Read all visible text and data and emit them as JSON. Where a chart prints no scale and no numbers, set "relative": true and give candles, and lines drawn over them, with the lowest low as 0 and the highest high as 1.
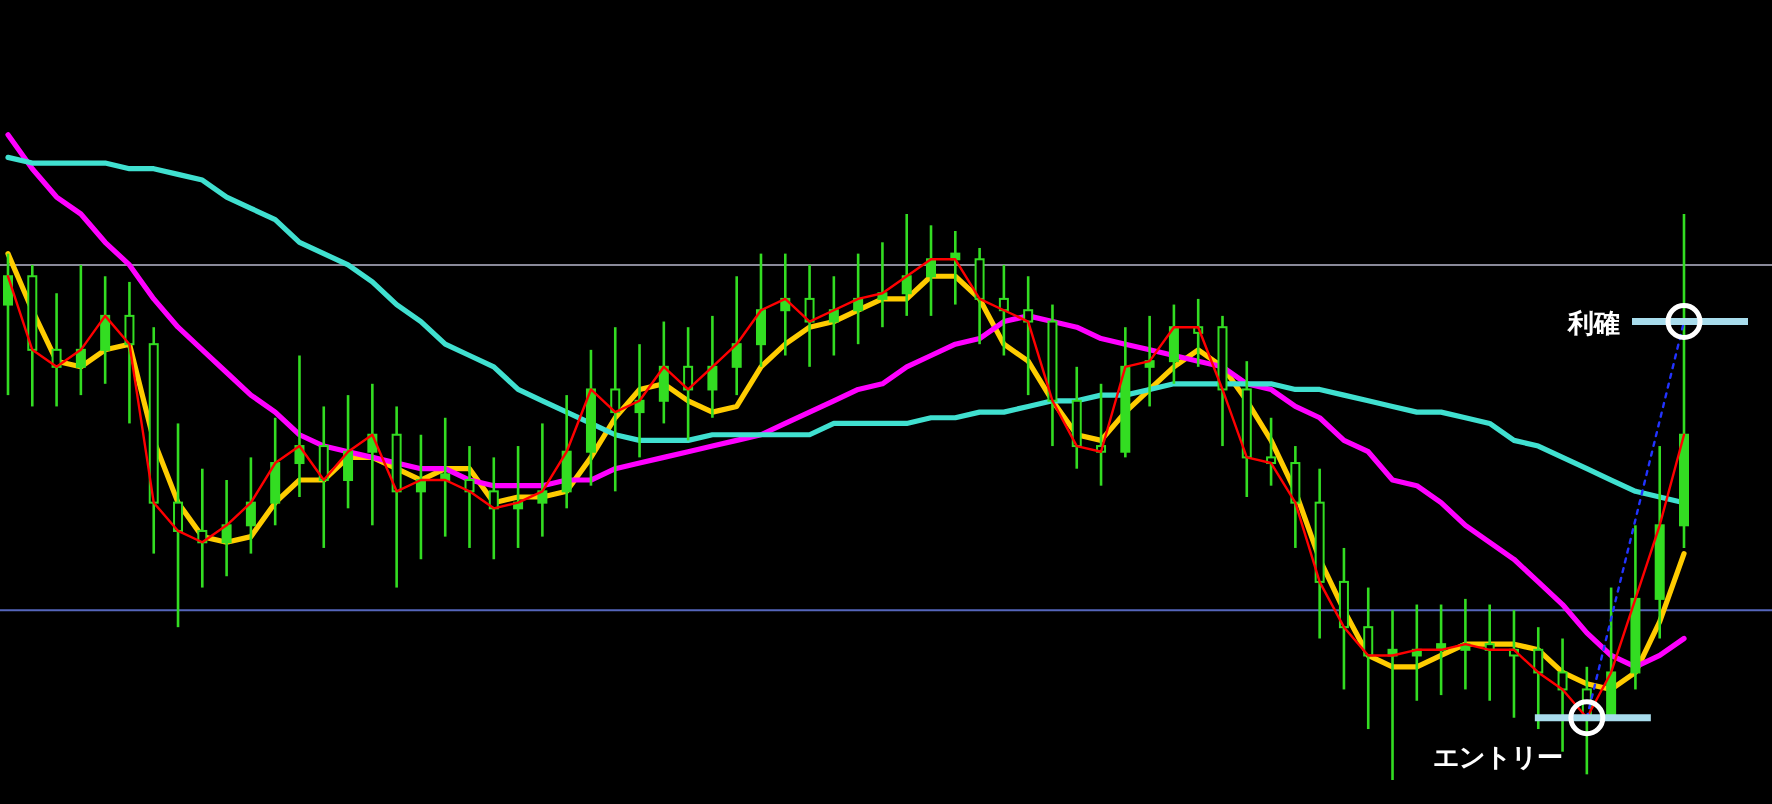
{
  "chart_data": {
    "type": "candlestick",
    "relative": true,
    "color": "#33dd22",
    "categories": [
      null,
      null,
      null,
      null,
      null,
      null,
      null,
      null,
      null,
      null,
      null,
      null,
      null,
      null,
      null,
      null,
      null,
      null,
      null,
      null,
      null,
      null,
      null,
      null,
      null,
      null,
      null,
      null,
      null,
      null,
      null,
      null,
      null,
      null,
      null,
      null,
      null,
      null,
      null,
      null,
      null,
      null,
      null,
      null,
      null,
      null,
      null,
      null,
      null,
      null,
      null,
      null,
      null,
      null,
      null,
      null,
      null,
      null,
      null,
      null,
      null,
      null,
      null,
      null,
      null,
      null,
      null,
      null,
      null,
      null
    ],
    "ohlc": [
      [
        0.84,
        0.93,
        0.68,
        0.89
      ],
      [
        0.89,
        0.91,
        0.66,
        0.76
      ],
      [
        0.76,
        0.86,
        0.66,
        0.73
      ],
      [
        0.73,
        0.91,
        0.68,
        0.76
      ],
      [
        0.76,
        0.89,
        0.7,
        0.82
      ],
      [
        0.82,
        0.88,
        0.63,
        0.77
      ],
      [
        0.77,
        0.8,
        0.4,
        0.49
      ],
      [
        0.49,
        0.63,
        0.27,
        0.44
      ],
      [
        0.44,
        0.55,
        0.34,
        0.42
      ],
      [
        0.42,
        0.53,
        0.36,
        0.45
      ],
      [
        0.45,
        0.57,
        0.4,
        0.49
      ],
      [
        0.49,
        0.64,
        0.45,
        0.56
      ],
      [
        0.56,
        0.75,
        0.5,
        0.59
      ],
      [
        0.59,
        0.66,
        0.41,
        0.53
      ],
      [
        0.53,
        0.68,
        0.48,
        0.58
      ],
      [
        0.58,
        0.7,
        0.45,
        0.61
      ],
      [
        0.61,
        0.66,
        0.34,
        0.51
      ],
      [
        0.51,
        0.61,
        0.39,
        0.53
      ],
      [
        0.53,
        0.64,
        0.43,
        0.54
      ],
      [
        0.53,
        0.59,
        0.41,
        0.51
      ],
      [
        0.51,
        0.57,
        0.39,
        0.48
      ],
      [
        0.48,
        0.59,
        0.41,
        0.49
      ],
      [
        0.49,
        0.63,
        0.43,
        0.51
      ],
      [
        0.51,
        0.68,
        0.48,
        0.58
      ],
      [
        0.58,
        0.76,
        0.52,
        0.69
      ],
      [
        0.69,
        0.8,
        0.51,
        0.65
      ],
      [
        0.65,
        0.77,
        0.57,
        0.67
      ],
      [
        0.67,
        0.81,
        0.63,
        0.73
      ],
      [
        0.73,
        0.8,
        0.6,
        0.69
      ],
      [
        0.69,
        0.82,
        0.64,
        0.73
      ],
      [
        0.73,
        0.89,
        0.68,
        0.77
      ],
      [
        0.77,
        0.93,
        0.73,
        0.83
      ],
      [
        0.83,
        0.93,
        0.75,
        0.85
      ],
      [
        0.85,
        0.91,
        0.73,
        0.81
      ],
      [
        0.81,
        0.89,
        0.75,
        0.83
      ],
      [
        0.83,
        0.93,
        0.77,
        0.85
      ],
      [
        0.85,
        0.95,
        0.8,
        0.86
      ],
      [
        0.86,
        1.0,
        0.82,
        0.89
      ],
      [
        0.89,
        0.98,
        0.82,
        0.92
      ],
      [
        0.92,
        0.97,
        0.84,
        0.93
      ],
      [
        0.92,
        0.94,
        0.77,
        0.85
      ],
      [
        0.85,
        0.91,
        0.75,
        0.83
      ],
      [
        0.83,
        0.89,
        0.68,
        0.81
      ],
      [
        0.81,
        0.84,
        0.59,
        0.67
      ],
      [
        0.67,
        0.73,
        0.55,
        0.59
      ],
      [
        0.59,
        0.7,
        0.52,
        0.58
      ],
      [
        0.58,
        0.8,
        0.57,
        0.73
      ],
      [
        0.73,
        0.82,
        0.66,
        0.74
      ],
      [
        0.74,
        0.84,
        0.7,
        0.8
      ],
      [
        0.8,
        0.85,
        0.73,
        0.79
      ],
      [
        0.8,
        0.82,
        0.59,
        0.69
      ],
      [
        0.69,
        0.74,
        0.5,
        0.57
      ],
      [
        0.57,
        0.64,
        0.52,
        0.56
      ],
      [
        0.56,
        0.59,
        0.41,
        0.49
      ],
      [
        0.49,
        0.55,
        0.25,
        0.35
      ],
      [
        0.35,
        0.41,
        0.16,
        0.27
      ],
      [
        0.27,
        0.34,
        0.09,
        0.22
      ],
      [
        0.22,
        0.3,
        0.0,
        0.23
      ],
      [
        0.22,
        0.31,
        0.14,
        0.23
      ],
      [
        0.23,
        0.31,
        0.15,
        0.24
      ],
      [
        0.23,
        0.32,
        0.16,
        0.24
      ],
      [
        0.24,
        0.31,
        0.14,
        0.23
      ],
      [
        0.23,
        0.3,
        0.11,
        0.22
      ],
      [
        0.23,
        0.27,
        0.09,
        0.19
      ],
      [
        0.19,
        0.25,
        0.05,
        0.16
      ],
      [
        0.16,
        0.2,
        0.01,
        0.11
      ],
      [
        0.11,
        0.34,
        0.11,
        0.19
      ],
      [
        0.19,
        0.45,
        0.16,
        0.32
      ],
      [
        0.32,
        0.59,
        0.25,
        0.45
      ],
      [
        0.45,
        1.0,
        0.41,
        0.61
      ]
    ],
    "series": [
      {
        "type": "line",
        "color": "#ff0000",
        "values": [
          0.89,
          0.76,
          0.73,
          0.76,
          0.82,
          0.77,
          0.49,
          0.44,
          0.42,
          0.45,
          0.49,
          0.56,
          0.59,
          0.53,
          0.58,
          0.61,
          0.51,
          0.53,
          0.53,
          0.51,
          0.48,
          0.49,
          0.51,
          0.58,
          0.69,
          0.65,
          0.67,
          0.73,
          0.69,
          0.73,
          0.77,
          0.83,
          0.85,
          0.81,
          0.83,
          0.85,
          0.86,
          0.89,
          0.92,
          0.92,
          0.85,
          0.83,
          0.81,
          0.67,
          0.59,
          0.58,
          0.73,
          0.74,
          0.8,
          0.8,
          0.69,
          0.57,
          0.56,
          0.49,
          0.35,
          0.27,
          0.22,
          0.22,
          0.23,
          0.23,
          0.24,
          0.23,
          0.23,
          0.19,
          0.16,
          0.11,
          0.19,
          0.32,
          0.45,
          0.61
        ]
      },
      {
        "type": "line",
        "color": "#ffcc00",
        "values": [
          0.93,
          0.83,
          0.74,
          0.73,
          0.76,
          0.77,
          0.6,
          0.49,
          0.43,
          0.42,
          0.43,
          0.49,
          0.53,
          0.53,
          0.57,
          0.57,
          0.55,
          0.53,
          0.55,
          0.55,
          0.49,
          0.5,
          0.5,
          0.51,
          0.57,
          0.64,
          0.69,
          0.7,
          0.67,
          0.65,
          0.66,
          0.73,
          0.77,
          0.8,
          0.81,
          0.83,
          0.85,
          0.85,
          0.89,
          0.89,
          0.85,
          0.77,
          0.74,
          0.67,
          0.61,
          0.6,
          0.65,
          0.69,
          0.73,
          0.76,
          0.73,
          0.67,
          0.6,
          0.51,
          0.39,
          0.3,
          0.22,
          0.2,
          0.2,
          0.22,
          0.24,
          0.24,
          0.24,
          0.23,
          0.19,
          0.17,
          0.16,
          0.19,
          0.28,
          0.4
        ]
      },
      {
        "type": "line",
        "color": "#ff00ff",
        "values": [
          1.14,
          1.08,
          1.03,
          1.0,
          0.95,
          0.91,
          0.85,
          0.8,
          0.76,
          0.72,
          0.68,
          0.65,
          0.61,
          0.59,
          0.58,
          0.57,
          0.56,
          0.55,
          0.55,
          0.53,
          0.52,
          0.52,
          0.52,
          0.53,
          0.53,
          0.55,
          0.56,
          0.57,
          0.58,
          0.59,
          0.6,
          0.61,
          0.63,
          0.65,
          0.67,
          0.69,
          0.7,
          0.73,
          0.75,
          0.77,
          0.78,
          0.81,
          0.82,
          0.81,
          0.8,
          0.78,
          0.77,
          0.76,
          0.75,
          0.74,
          0.73,
          0.7,
          0.69,
          0.66,
          0.64,
          0.6,
          0.58,
          0.53,
          0.52,
          0.49,
          0.45,
          0.42,
          0.39,
          0.35,
          0.31,
          0.26,
          0.22,
          0.2,
          0.22,
          0.25
        ]
      },
      {
        "type": "line",
        "color": "#40e0d0",
        "values": [
          1.1,
          1.09,
          1.09,
          1.09,
          1.09,
          1.08,
          1.08,
          1.07,
          1.06,
          1.03,
          1.01,
          0.99,
          0.95,
          0.93,
          0.91,
          0.88,
          0.84,
          0.81,
          0.77,
          0.75,
          0.73,
          0.69,
          0.67,
          0.65,
          0.63,
          0.61,
          0.6,
          0.6,
          0.6,
          0.61,
          0.61,
          0.61,
          0.61,
          0.61,
          0.63,
          0.63,
          0.63,
          0.63,
          0.64,
          0.64,
          0.65,
          0.65,
          0.66,
          0.67,
          0.67,
          0.68,
          0.68,
          0.69,
          0.7,
          0.7,
          0.7,
          0.7,
          0.7,
          0.69,
          0.69,
          0.68,
          0.67,
          0.66,
          0.65,
          0.65,
          0.64,
          0.63,
          0.6,
          0.59,
          0.57,
          0.55,
          0.53,
          0.51,
          0.5,
          0.49
        ]
      },
      {
        "type": "line",
        "color": "#2233ff",
        "line_style": "dotted",
        "marker": "circle",
        "values": [
          null,
          null,
          null,
          null,
          null,
          null,
          null,
          null,
          null,
          null,
          null,
          null,
          null,
          null,
          null,
          null,
          null,
          null,
          null,
          null,
          null,
          null,
          null,
          null,
          null,
          null,
          null,
          null,
          null,
          null,
          null,
          null,
          null,
          null,
          null,
          null,
          null,
          null,
          null,
          null,
          null,
          null,
          null,
          null,
          null,
          null,
          null,
          null,
          null,
          null,
          null,
          null,
          null,
          null,
          null,
          null,
          null,
          null,
          null,
          null,
          null,
          null,
          null,
          null,
          null,
          0.11,
          null,
          null,
          null,
          0.81
        ]
      }
    ],
    "ref_lines": [
      {
        "axis": "y",
        "value": 0.91,
        "color": "#8a8a9a"
      },
      {
        "axis": "y",
        "value": 0.3,
        "color": "#5566bb"
      }
    ],
    "annotations": [
      "利確",
      "エントリー"
    ]
  }
}
